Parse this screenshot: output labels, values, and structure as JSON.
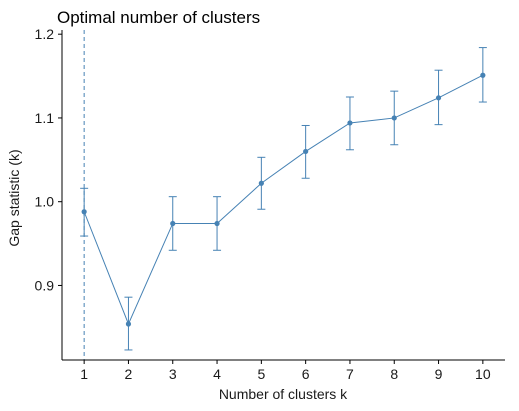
{
  "chart_data": {
    "type": "line",
    "title": "Optimal number of clusters",
    "xlabel": "Number of clusters k",
    "ylabel": "Gap statistic (k)",
    "x": [
      1,
      2,
      3,
      4,
      5,
      6,
      7,
      8,
      9,
      10
    ],
    "series": [
      {
        "values": [
          0.988,
          0.854,
          0.974,
          0.974,
          1.022,
          1.06,
          1.094,
          1.1,
          1.124,
          1.151
        ],
        "error_lower": [
          0.959,
          0.823,
          0.942,
          0.942,
          0.991,
          1.028,
          1.062,
          1.068,
          1.092,
          1.119
        ],
        "error_upper": [
          1.016,
          0.886,
          1.006,
          1.006,
          1.053,
          1.091,
          1.125,
          1.132,
          1.157,
          1.184
        ]
      }
    ],
    "y_ticks": [
      0.9,
      1.0,
      1.1,
      1.2
    ],
    "y_tick_labels": [
      "0.9",
      "1.0",
      "1.1",
      "1.2"
    ],
    "x_ticks": [
      1,
      2,
      3,
      4,
      5,
      6,
      7,
      8,
      9,
      10
    ],
    "xlim": [
      0.5,
      10.5
    ],
    "ylim": [
      0.811,
      1.205
    ],
    "optimal_k": 1,
    "grid": false,
    "colors": {
      "series": "#4682b4",
      "axis": "#000000"
    }
  }
}
